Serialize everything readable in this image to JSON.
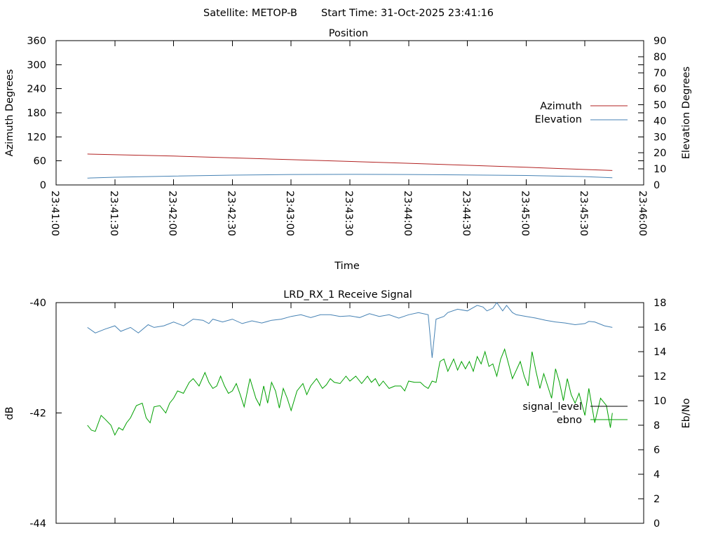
{
  "header": {
    "satellite_label": "Satellite: METOP-B",
    "start_time_label": "Start Time: 31-Oct-2025 23:41:16"
  },
  "chart_data": [
    {
      "type": "line",
      "title": "Position",
      "xlabel": "Time",
      "ylabel": "Azimuth Degrees",
      "y2label": "Elevation Degrees",
      "x_ticks": [
        "23:41:00",
        "23:41:30",
        "23:42:00",
        "23:42:30",
        "23:43:00",
        "23:43:30",
        "23:44:00",
        "23:44:30",
        "23:45:00",
        "23:45:30",
        "23:46:00"
      ],
      "xlim_seconds": [
        0,
        300
      ],
      "ylim": [
        0,
        360
      ],
      "y_ticks": [
        0,
        60,
        120,
        180,
        240,
        300,
        360
      ],
      "y2lim": [
        0,
        90
      ],
      "y2_ticks": [
        0,
        10,
        20,
        30,
        40,
        50,
        60,
        70,
        80,
        90
      ],
      "legend_placement": "right",
      "series": [
        {
          "name": "Azimuth",
          "axis": "left",
          "color": "#b22222",
          "x": [
            16,
            60,
            120,
            180,
            240,
            284
          ],
          "y": [
            77,
            72,
            63,
            54,
            44,
            36
          ]
        },
        {
          "name": "Elevation",
          "axis": "right",
          "color": "#4682b4",
          "x": [
            16,
            30,
            60,
            90,
            120,
            150,
            180,
            210,
            240,
            270,
            284
          ],
          "y": [
            4.3,
            4.8,
            5.5,
            6.1,
            6.5,
            6.6,
            6.5,
            6.2,
            5.9,
            5.2,
            4.5
          ]
        }
      ]
    },
    {
      "type": "line",
      "title": "LRD_RX_1 Receive Signal",
      "ylabel": "dB",
      "y2label": "Eb/No",
      "ylim": [
        -44,
        -40
      ],
      "y_ticks": [
        -44,
        -42,
        -40
      ],
      "y2lim": [
        0,
        18
      ],
      "y2_ticks": [
        0,
        2,
        4,
        6,
        8,
        10,
        12,
        14,
        16,
        18
      ],
      "legend_placement": "right",
      "series": [
        {
          "name": "signal_level",
          "axis": "left",
          "color": "#4682b4",
          "x": [
            16,
            20,
            25,
            30,
            33,
            38,
            42,
            47,
            50,
            55,
            60,
            65,
            70,
            75,
            78,
            80,
            85,
            90,
            95,
            100,
            105,
            110,
            115,
            120,
            125,
            130,
            135,
            140,
            145,
            150,
            155,
            160,
            165,
            170,
            175,
            180,
            185,
            190,
            192,
            194,
            198,
            200,
            205,
            210,
            215,
            218,
            220,
            223,
            225,
            228,
            230,
            233,
            235,
            240,
            245,
            250,
            255,
            260,
            265,
            270,
            272,
            275,
            280,
            284
          ],
          "y": [
            -40.45,
            -40.55,
            -40.48,
            -40.42,
            -40.52,
            -40.45,
            -40.55,
            -40.4,
            -40.45,
            -40.42,
            -40.35,
            -40.42,
            -40.3,
            -40.32,
            -40.38,
            -40.3,
            -40.35,
            -40.3,
            -40.38,
            -40.33,
            -40.37,
            -40.32,
            -40.3,
            -40.25,
            -40.22,
            -40.27,
            -40.22,
            -40.22,
            -40.25,
            -40.24,
            -40.27,
            -40.2,
            -40.25,
            -40.22,
            -40.28,
            -40.22,
            -40.18,
            -40.22,
            -41.0,
            -40.3,
            -40.25,
            -40.18,
            -40.12,
            -40.15,
            -40.05,
            -40.08,
            -40.15,
            -40.1,
            -40.0,
            -40.15,
            -40.05,
            -40.18,
            -40.22,
            -40.25,
            -40.28,
            -40.32,
            -40.35,
            -40.37,
            -40.4,
            -40.38,
            -40.34,
            -40.35,
            -40.42,
            -40.45
          ]
        },
        {
          "name": "ebno",
          "axis": "right",
          "color": "#00a000",
          "x": [
            16,
            18,
            20,
            23,
            25,
            28,
            30,
            32,
            34,
            36,
            38,
            41,
            44,
            46,
            48,
            50,
            53,
            56,
            58,
            60,
            62,
            65,
            68,
            70,
            73,
            76,
            78,
            80,
            82,
            84,
            86,
            88,
            90,
            92,
            94,
            96,
            99,
            102,
            104,
            106,
            108,
            110,
            112,
            114,
            116,
            118,
            120,
            123,
            126,
            128,
            130,
            133,
            136,
            138,
            140,
            142,
            145,
            148,
            150,
            153,
            156,
            159,
            161,
            163,
            165,
            167,
            170,
            173,
            176,
            178,
            180,
            183,
            186,
            188,
            190,
            192,
            194,
            196,
            198,
            200,
            203,
            205,
            207,
            209,
            211,
            213,
            215,
            217,
            219,
            221,
            223,
            225,
            227,
            229,
            231,
            233,
            235,
            237,
            239,
            241,
            243,
            245,
            247,
            249,
            251,
            253,
            255,
            257,
            259,
            261,
            263,
            265,
            267,
            270,
            272,
            275,
            278,
            281,
            283,
            284
          ],
          "y": [
            8.0,
            7.6,
            7.5,
            8.8,
            8.5,
            8.0,
            7.2,
            7.8,
            7.6,
            8.2,
            8.6,
            9.6,
            9.8,
            8.6,
            8.2,
            9.5,
            9.6,
            9.0,
            9.8,
            10.2,
            10.8,
            10.6,
            11.5,
            11.8,
            11.2,
            12.3,
            11.5,
            11.0,
            11.2,
            12.0,
            11.2,
            10.6,
            10.8,
            11.4,
            10.5,
            9.5,
            11.8,
            10.2,
            9.6,
            11.2,
            9.8,
            11.5,
            10.8,
            9.4,
            11.0,
            10.2,
            9.2,
            10.8,
            11.4,
            10.5,
            11.2,
            11.8,
            11.0,
            11.3,
            11.8,
            11.5,
            11.4,
            12.0,
            11.6,
            12.0,
            11.4,
            12.0,
            11.5,
            11.8,
            11.2,
            11.6,
            11.0,
            11.2,
            11.2,
            10.8,
            11.6,
            11.5,
            11.5,
            11.2,
            11.0,
            11.6,
            11.5,
            13.2,
            13.4,
            12.4,
            13.4,
            12.5,
            13.2,
            12.6,
            13.2,
            12.4,
            13.6,
            13.0,
            14.0,
            12.8,
            13.0,
            12.0,
            13.4,
            14.2,
            13.0,
            11.8,
            12.5,
            13.2,
            12.0,
            11.2,
            14.0,
            12.4,
            11.0,
            12.2,
            11.2,
            10.2,
            12.6,
            11.5,
            10.0,
            11.8,
            10.5,
            9.8,
            10.6,
            8.8,
            11.0,
            8.2,
            10.2,
            9.6,
            7.8,
            9.0
          ]
        }
      ],
      "legend": [
        "signal_level",
        "ebno"
      ]
    }
  ]
}
